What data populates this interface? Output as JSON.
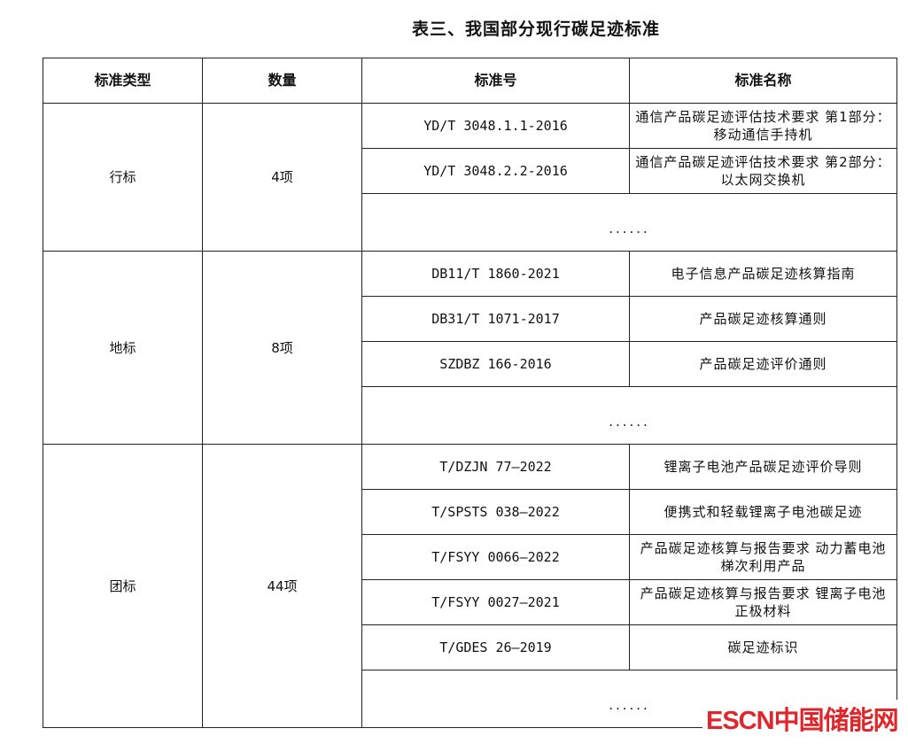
{
  "title": "表三、我国部分现行碳足迹标准",
  "headers": [
    "标准类型",
    "数量",
    "标准号",
    "标准名称"
  ],
  "groups": [
    {
      "type": "行标",
      "count": "4项",
      "rows": [
        {
          "code": "YD/T 3048.1.1-2016",
          "name": "通信产品碳足迹评估技术要求 第1部分：移动通信手持机"
        },
        {
          "code": "YD/T 3048.2.2-2016",
          "name": "通信产品碳足迹评估技术要求 第2部分：以太网交换机"
        }
      ],
      "more": "......"
    },
    {
      "type": "地标",
      "count": "8项",
      "rows": [
        {
          "code": "DB11/T 1860-2021",
          "name": "电子信息产品碳足迹核算指南"
        },
        {
          "code": "DB31/T 1071-2017",
          "name": "产品碳足迹核算通则"
        },
        {
          "code": "SZDBZ 166-2016",
          "name": "产品碳足迹评价通则"
        }
      ],
      "more": "......"
    },
    {
      "type": "团标",
      "count": "44项",
      "rows": [
        {
          "code": "T/DZJN 77—2022",
          "name": "锂离子电池产品碳足迹评价导则"
        },
        {
          "code": "T/SPSTS 038—2022",
          "name": "便携式和轻载锂离子电池碳足迹"
        },
        {
          "code": "T/FSYY 0066—2022",
          "name": "产品碳足迹核算与报告要求 动力蓄电池梯次利用产品"
        },
        {
          "code": "T/FSYY 0027—2021",
          "name": "产品碳足迹核算与报告要求 锂离子电池正极材料"
        },
        {
          "code": "T/GDES 26—2019",
          "name": "碳足迹标识"
        }
      ],
      "more": "......"
    }
  ],
  "watermark": "ESCN中国储能网",
  "colors": {
    "watermark": "#e0262a",
    "border": "#222222"
  }
}
